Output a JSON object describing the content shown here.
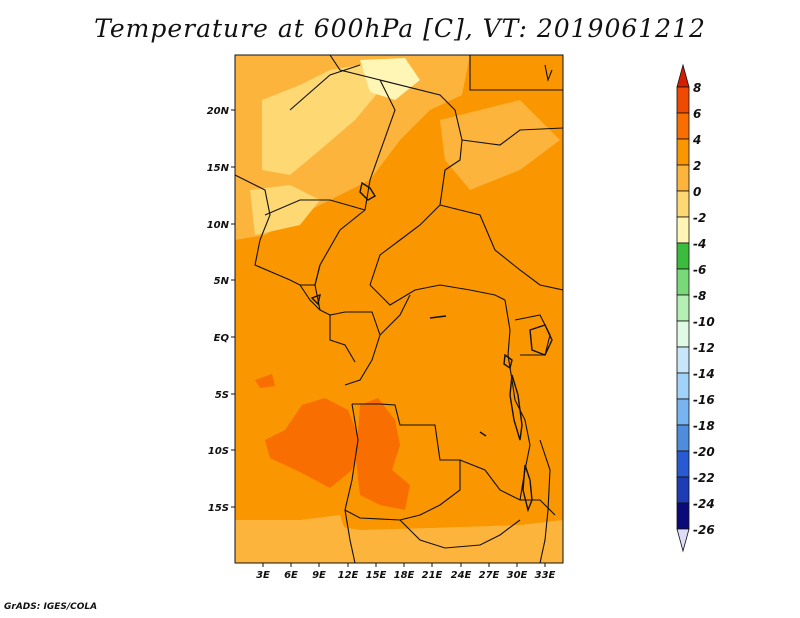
{
  "title": "Temperature at 600hPa [C], VT: 2019061212",
  "credit": "GrADS: IGES/COLA",
  "lat_labels": [
    "20N",
    "15N",
    "10N",
    "5N",
    "EQ",
    "5S",
    "10S",
    "15S"
  ],
  "lon_labels": [
    "3E",
    "6E",
    "9E",
    "12E",
    "15E",
    "18E",
    "21E",
    "24E",
    "27E",
    "30E",
    "33E"
  ],
  "colorbar": {
    "labels": [
      "8",
      "6",
      "4",
      "2",
      "0",
      "-2",
      "-4",
      "-6",
      "-8",
      "-10",
      "-12",
      "-14",
      "-16",
      "-18",
      "-20",
      "-22",
      "-24",
      "-26"
    ],
    "colors": [
      "#d41e00",
      "#f04a00",
      "#f86e00",
      "#fa9600",
      "#fdb43c",
      "#fdd873",
      "#fff5b4",
      "#3cbc3c",
      "#79d979",
      "#b4f0b4",
      "#e1fae6",
      "#c8e6fa",
      "#a0d2fa",
      "#78b4f0",
      "#508cdc",
      "#285ad2",
      "#1e3cb4",
      "#0a0a78",
      "#ddddf8"
    ]
  },
  "map_colors": {
    "base": "#fa9600",
    "warm": "#f86e00",
    "light": "#fdb43c",
    "lighter": "#fdd873",
    "palest": "#fff5b4"
  }
}
